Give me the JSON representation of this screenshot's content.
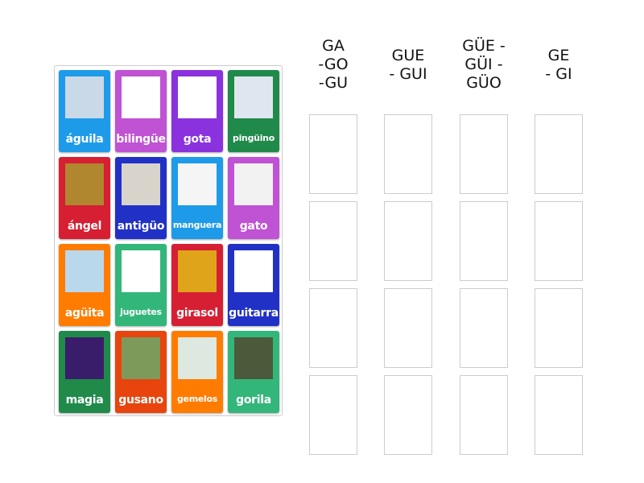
{
  "cards": [
    {
      "label": "águila",
      "color": "#1e9be8",
      "image": "eagle",
      "img_bg": "#c9d9e8"
    },
    {
      "label": "bilingüe",
      "color": "#c052d4",
      "image": "speech-bubbles",
      "img_bg": "#ffffff"
    },
    {
      "label": "gota",
      "color": "#8a32de",
      "image": "water-drop",
      "img_bg": "#ffffff"
    },
    {
      "label": "pingüino",
      "color": "#1f8a4a",
      "image": "penguin",
      "img_bg": "#dfe6ef"
    },
    {
      "label": "ángel",
      "color": "#d61f32",
      "image": "angel",
      "img_bg": "#b0862f"
    },
    {
      "label": "antigüo",
      "color": "#2131c6",
      "image": "old-car",
      "img_bg": "#d8d4cc"
    },
    {
      "label": "manguera",
      "color": "#1e9be8",
      "image": "hose",
      "img_bg": "#f5f5f5"
    },
    {
      "label": "gato",
      "color": "#c052d4",
      "image": "kitten",
      "img_bg": "#f2f2f2"
    },
    {
      "label": "agüita",
      "color": "#ff7c00",
      "image": "water-glass",
      "img_bg": "#b9d8ec"
    },
    {
      "label": "juguetes",
      "color": "#33b67a",
      "image": "toy-train",
      "img_bg": "#ffffff"
    },
    {
      "label": "girasol",
      "color": "#d61f32",
      "image": "sunflower",
      "img_bg": "#e0a41a"
    },
    {
      "label": "guitarra",
      "color": "#2131c6",
      "image": "guitar",
      "img_bg": "#ffffff"
    },
    {
      "label": "magia",
      "color": "#1f8a4a",
      "image": "magic-hat",
      "img_bg": "#3a1d6a"
    },
    {
      "label": "gusano",
      "color": "#e8440e",
      "image": "caterpillar",
      "img_bg": "#7e9a5a"
    },
    {
      "label": "gemelos",
      "color": "#ff7c00",
      "image": "twins",
      "img_bg": "#dce8e0"
    },
    {
      "label": "gorila",
      "color": "#33b67a",
      "image": "gorilla",
      "img_bg": "#4a5a3a"
    }
  ],
  "columns": [
    {
      "lines": [
        "GA",
        "-GO",
        "-GU"
      ]
    },
    {
      "lines": [
        "GUE",
        "- GUI"
      ]
    },
    {
      "lines": [
        "GÜE -",
        "GÜI -",
        "GÜO"
      ]
    },
    {
      "lines": [
        "GE",
        "- GI"
      ]
    }
  ]
}
